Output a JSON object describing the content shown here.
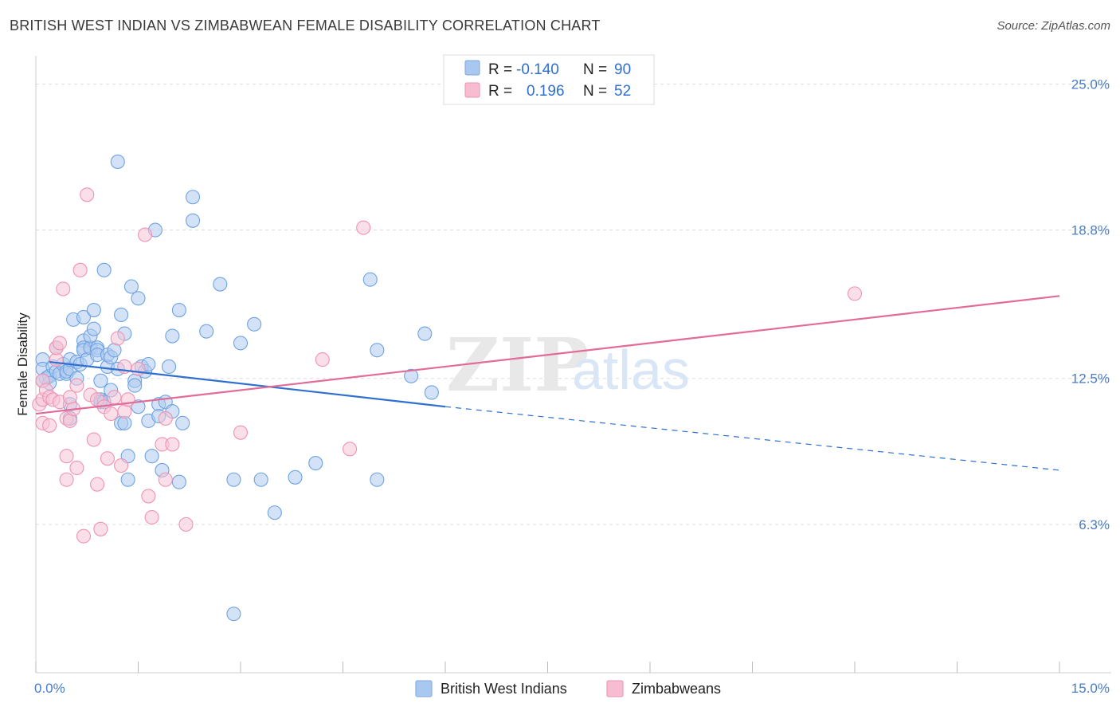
{
  "title": "BRITISH WEST INDIAN VS ZIMBABWEAN FEMALE DISABILITY CORRELATION CHART",
  "source": "Source: ZipAtlas.com",
  "watermark": {
    "zip": "ZIP",
    "atlas": "atlas"
  },
  "legend_top": [
    {
      "r_label": "R =",
      "r_value": "-0.140",
      "n_label": "N =",
      "n_value": "90",
      "color": "#a9c8f0",
      "stroke": "#7aa6e0"
    },
    {
      "r_label": "R =",
      "r_value": "0.196",
      "n_label": "N =",
      "n_value": "52",
      "color": "#f7bcd0",
      "stroke": "#ee8fb0"
    }
  ],
  "chart_data": {
    "type": "scatter",
    "title": "BRITISH WEST INDIAN VS ZIMBABWEAN FEMALE DISABILITY CORRELATION CHART",
    "xlabel": "",
    "ylabel": "Female Disability",
    "xlim": [
      0,
      15
    ],
    "ylim": [
      0,
      26.2
    ],
    "x_tick_labels": [
      "0.0%",
      "15.0%"
    ],
    "y_ticks": [
      6.3,
      12.5,
      18.8,
      25.0
    ],
    "y_tick_labels": [
      "6.3%",
      "12.5%",
      "18.8%",
      "25.0%"
    ],
    "legend_placement": "top-center",
    "grid": true,
    "series": [
      {
        "name": "British West Indians",
        "color": "#6fa3e3",
        "fill": "#aecbef",
        "trend": {
          "x0": 0.2,
          "y0": 13.2,
          "x1": 6.0,
          "y1": 11.3,
          "dash_to_x": 15.0,
          "dash_to_y": 8.6,
          "color": "#2f6fcf"
        },
        "points": [
          [
            0.1,
            13.3
          ],
          [
            0.1,
            12.9
          ],
          [
            0.15,
            12.5
          ],
          [
            0.2,
            12.6
          ],
          [
            0.2,
            12.3
          ],
          [
            0.25,
            13.0
          ],
          [
            0.3,
            12.8
          ],
          [
            0.3,
            13.8
          ],
          [
            0.35,
            12.7
          ],
          [
            0.4,
            13.1
          ],
          [
            0.45,
            12.7
          ],
          [
            0.45,
            12.8
          ],
          [
            0.5,
            12.9
          ],
          [
            0.5,
            10.8
          ],
          [
            0.5,
            11.4
          ],
          [
            0.5,
            13.3
          ],
          [
            0.55,
            15.0
          ],
          [
            0.6,
            13.2
          ],
          [
            0.6,
            12.5
          ],
          [
            0.65,
            13.1
          ],
          [
            0.7,
            14.1
          ],
          [
            0.7,
            13.8
          ],
          [
            0.7,
            13.7
          ],
          [
            0.7,
            15.1
          ],
          [
            0.75,
            13.3
          ],
          [
            0.8,
            13.8
          ],
          [
            0.8,
            14.3
          ],
          [
            0.85,
            14.6
          ],
          [
            0.85,
            15.4
          ],
          [
            0.9,
            13.8
          ],
          [
            0.9,
            13.7
          ],
          [
            0.9,
            13.5
          ],
          [
            0.95,
            12.4
          ],
          [
            0.95,
            11.6
          ],
          [
            0.95,
            11.5
          ],
          [
            1.0,
            17.1
          ],
          [
            1.0,
            11.5
          ],
          [
            1.05,
            13.0
          ],
          [
            1.05,
            13.5
          ],
          [
            1.1,
            12.0
          ],
          [
            1.1,
            13.4
          ],
          [
            1.15,
            13.7
          ],
          [
            1.2,
            21.7
          ],
          [
            1.2,
            12.9
          ],
          [
            1.25,
            10.6
          ],
          [
            1.25,
            15.2
          ],
          [
            1.3,
            10.6
          ],
          [
            1.3,
            14.4
          ],
          [
            1.35,
            8.2
          ],
          [
            1.35,
            9.2
          ],
          [
            1.4,
            16.4
          ],
          [
            1.45,
            12.4
          ],
          [
            1.45,
            12.2
          ],
          [
            1.5,
            15.9
          ],
          [
            1.5,
            11.3
          ],
          [
            1.55,
            13.0
          ],
          [
            1.6,
            12.8
          ],
          [
            1.65,
            13.1
          ],
          [
            1.65,
            10.7
          ],
          [
            1.7,
            9.2
          ],
          [
            1.75,
            18.8
          ],
          [
            1.8,
            11.4
          ],
          [
            1.8,
            10.9
          ],
          [
            1.85,
            8.6
          ],
          [
            1.9,
            11.5
          ],
          [
            1.95,
            13.0
          ],
          [
            2.0,
            11.1
          ],
          [
            2.0,
            14.3
          ],
          [
            2.1,
            15.4
          ],
          [
            2.1,
            8.1
          ],
          [
            2.15,
            10.6
          ],
          [
            2.3,
            20.2
          ],
          [
            2.3,
            19.2
          ],
          [
            2.5,
            14.5
          ],
          [
            2.7,
            16.5
          ],
          [
            2.9,
            8.2
          ],
          [
            3.0,
            14.0
          ],
          [
            3.2,
            14.8
          ],
          [
            3.3,
            8.2
          ],
          [
            3.5,
            6.8
          ],
          [
            3.8,
            8.3
          ],
          [
            4.1,
            8.9
          ],
          [
            4.9,
            16.7
          ],
          [
            5.0,
            13.7
          ],
          [
            5.0,
            8.2
          ],
          [
            5.5,
            12.6
          ],
          [
            5.7,
            14.4
          ],
          [
            5.8,
            11.9
          ],
          [
            0.1,
            12.4
          ],
          [
            2.9,
            2.5
          ]
        ]
      },
      {
        "name": "Zimbabweans",
        "color": "#ef93b3",
        "fill": "#f8c4d6",
        "trend": {
          "x0": 0.0,
          "y0": 11.0,
          "x1": 15.0,
          "y1": 16.0,
          "color": "#e26b97"
        },
        "points": [
          [
            0.05,
            11.4
          ],
          [
            0.1,
            10.6
          ],
          [
            0.1,
            11.6
          ],
          [
            0.1,
            12.4
          ],
          [
            0.15,
            12.0
          ],
          [
            0.2,
            11.7
          ],
          [
            0.25,
            11.6
          ],
          [
            0.3,
            13.3
          ],
          [
            0.3,
            13.8
          ],
          [
            0.35,
            14.0
          ],
          [
            0.35,
            11.5
          ],
          [
            0.4,
            16.3
          ],
          [
            0.45,
            10.8
          ],
          [
            0.45,
            9.2
          ],
          [
            0.45,
            8.2
          ],
          [
            0.5,
            11.7
          ],
          [
            0.5,
            10.7
          ],
          [
            0.55,
            11.2
          ],
          [
            0.6,
            8.7
          ],
          [
            0.6,
            12.2
          ],
          [
            0.65,
            17.1
          ],
          [
            0.7,
            5.8
          ],
          [
            0.75,
            20.3
          ],
          [
            0.8,
            11.8
          ],
          [
            0.85,
            9.9
          ],
          [
            0.9,
            8.0
          ],
          [
            0.9,
            11.6
          ],
          [
            0.95,
            6.1
          ],
          [
            1.0,
            11.3
          ],
          [
            1.05,
            9.1
          ],
          [
            1.1,
            11.0
          ],
          [
            1.15,
            11.7
          ],
          [
            1.2,
            14.2
          ],
          [
            1.25,
            8.8
          ],
          [
            1.3,
            11.1
          ],
          [
            1.3,
            13.0
          ],
          [
            1.35,
            11.6
          ],
          [
            1.5,
            12.9
          ],
          [
            1.6,
            18.6
          ],
          [
            1.65,
            7.5
          ],
          [
            1.7,
            6.6
          ],
          [
            1.85,
            9.7
          ],
          [
            1.9,
            8.2
          ],
          [
            1.9,
            10.8
          ],
          [
            2.0,
            9.7
          ],
          [
            2.2,
            6.3
          ],
          [
            3.0,
            10.2
          ],
          [
            4.2,
            13.3
          ],
          [
            4.6,
            9.5
          ],
          [
            4.8,
            18.9
          ],
          [
            12.0,
            16.1
          ],
          [
            0.2,
            10.5
          ]
        ]
      }
    ]
  }
}
